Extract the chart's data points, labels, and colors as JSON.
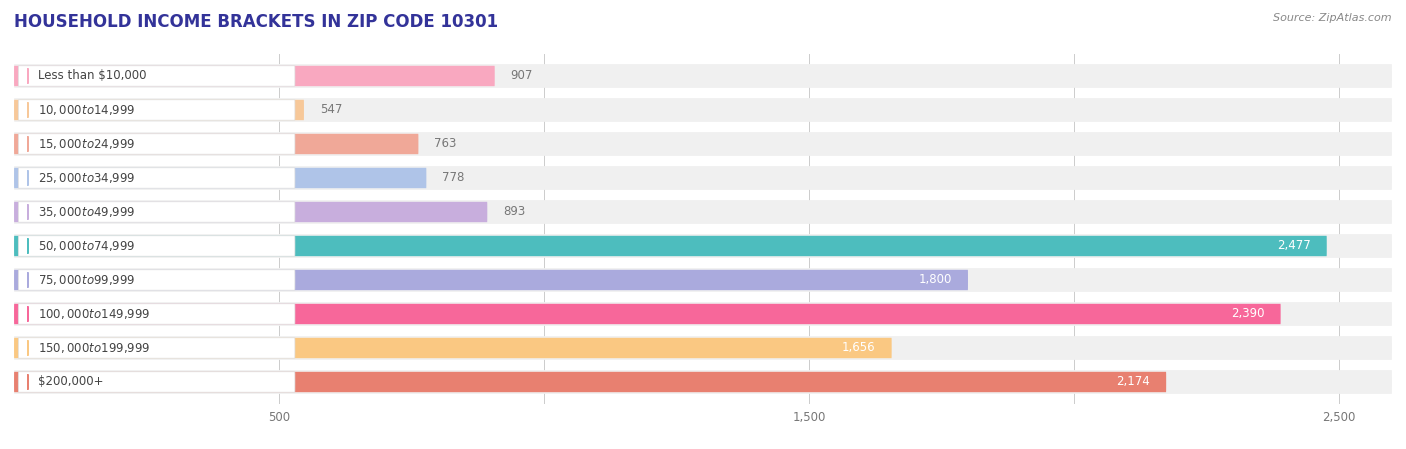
{
  "title": "HOUSEHOLD INCOME BRACKETS IN ZIP CODE 10301",
  "source": "Source: ZipAtlas.com",
  "categories": [
    "Less than $10,000",
    "$10,000 to $14,999",
    "$15,000 to $24,999",
    "$25,000 to $34,999",
    "$35,000 to $49,999",
    "$50,000 to $74,999",
    "$75,000 to $99,999",
    "$100,000 to $149,999",
    "$150,000 to $199,999",
    "$200,000+"
  ],
  "values": [
    907,
    547,
    763,
    778,
    893,
    2477,
    1800,
    2390,
    1656,
    2174
  ],
  "bar_colors": [
    "#F9A8C0",
    "#F7C899",
    "#F0A898",
    "#AFC4E8",
    "#C8AEDD",
    "#4DBDBE",
    "#AAAADD",
    "#F7679A",
    "#FAC882",
    "#E88070"
  ],
  "xlim": [
    0,
    2600
  ],
  "background_color": "#ffffff",
  "row_bg_color": "#f0f0f0",
  "title_fontsize": 12,
  "label_fontsize": 8.5,
  "value_fontsize": 8.5,
  "source_fontsize": 8,
  "label_text_color": "#444444",
  "value_text_color_inside": "#ffffff",
  "value_text_color_outside": "#777777",
  "title_color": "#333399"
}
